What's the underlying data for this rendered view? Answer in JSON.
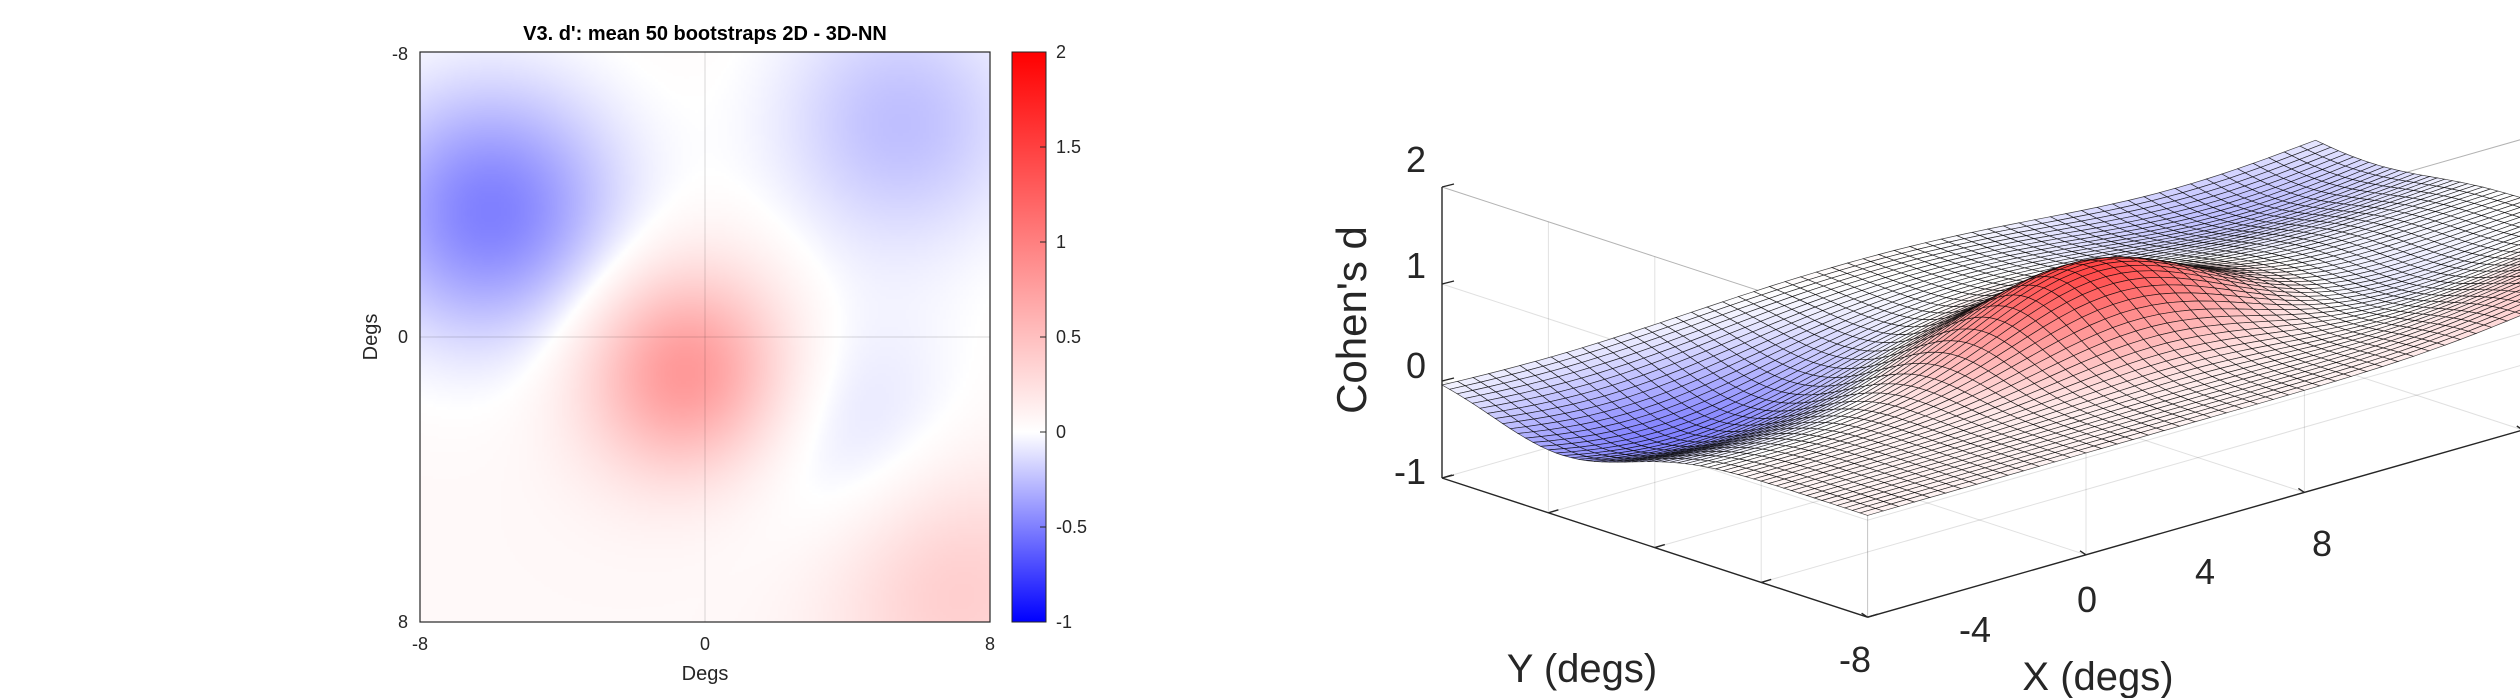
{
  "chart_data": [
    {
      "type": "heatmap",
      "title": "V3. d': mean 50 bootstraps 2D - 3D-NN",
      "xlabel": "Degs",
      "ylabel": "Degs",
      "xlim": [
        -8,
        8
      ],
      "ylim": [
        -8,
        8
      ],
      "y_reversed": true,
      "x_ticks": [
        "-8",
        "0",
        "8"
      ],
      "y_ticks": [
        "-8",
        "0",
        "8"
      ],
      "clim": [
        -1,
        2
      ],
      "colorbar_ticks": [
        "2",
        "1.5",
        "1",
        "0.5",
        "0",
        "-0.5",
        "-1"
      ],
      "colorbar_values": [
        2,
        1.5,
        1,
        0.5,
        0,
        -0.5,
        -1
      ],
      "colormap": {
        "low": "#0000ff",
        "mid": "#ffffff",
        "high": "#ff0000"
      },
      "grid": true,
      "features": [
        {
          "label": "central positive peak",
          "x": -0.5,
          "y": 1,
          "value": 0.8
        },
        {
          "label": "upper-left negative lobe",
          "x": -6,
          "y": -3.5,
          "value": -0.55
        },
        {
          "label": "upper-right negative lobe",
          "x": 5.5,
          "y": -6,
          "value": -0.3
        },
        {
          "label": "lower-right negative spot",
          "x": 4,
          "y": 2.8,
          "value": -0.2
        },
        {
          "label": "bottom-right positive corner",
          "x": 7,
          "y": 7,
          "value": 0.35
        }
      ]
    },
    {
      "type": "surface",
      "zlabel": "Cohen's d",
      "xlabel": "X (degs)",
      "ylabel": "Y (degs)",
      "zlim": [
        -1,
        2
      ],
      "z_ticks": [
        "2",
        "1",
        "0",
        "-1"
      ],
      "x_ticks": [
        "-8",
        "-4",
        "0",
        "4",
        "8"
      ],
      "edge_color": "#000000",
      "colormap": {
        "low": "#0000ff",
        "mid": "#ffffff",
        "high": "#ff0000"
      },
      "grid": true,
      "peak_value": 0.8
    }
  ]
}
